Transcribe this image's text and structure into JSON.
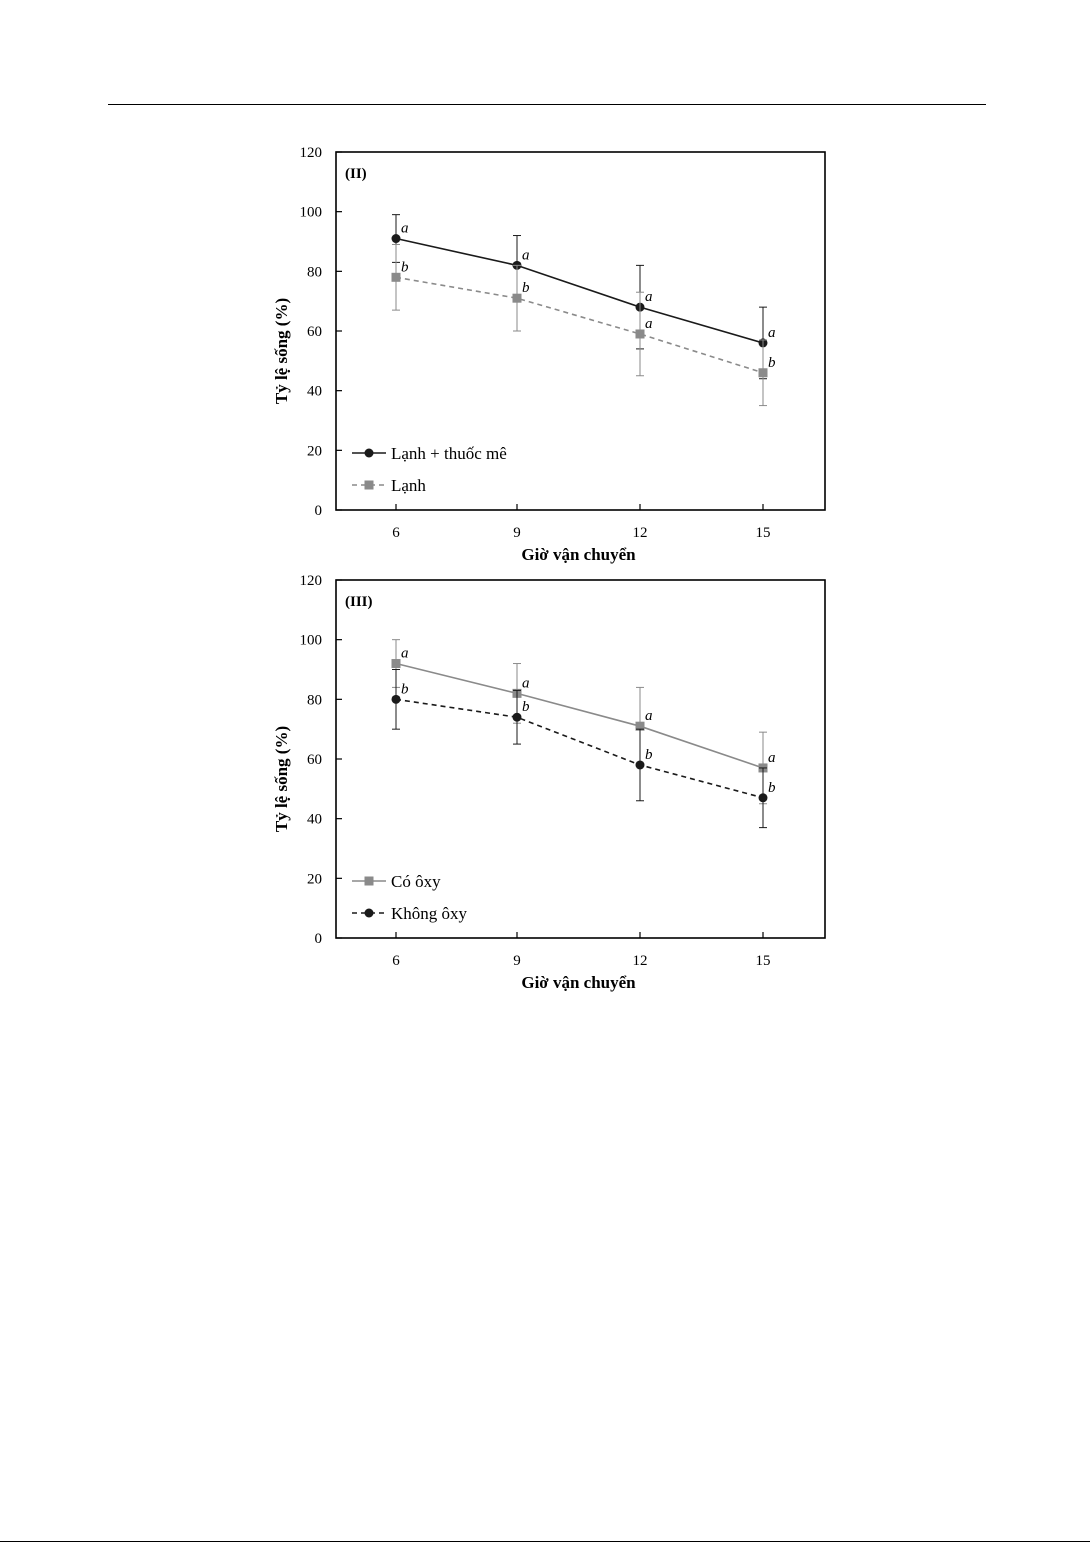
{
  "chart_data": [
    {
      "type": "line",
      "panel_label": "(II)",
      "xlabel": "Giờ vận chuyển",
      "ylabel": "Tỷ lệ sống (%)",
      "x": [
        6,
        9,
        12,
        15
      ],
      "x_tick_labels": [
        "6",
        "9",
        "12",
        "15"
      ],
      "ylim": [
        0,
        120
      ],
      "y_ticks": [
        0,
        20,
        40,
        60,
        80,
        100,
        120
      ],
      "y_tick_labels": [
        "0",
        "20",
        "40",
        "60",
        "80",
        "100",
        "120"
      ],
      "legend_position": "bottom-left",
      "series": [
        {
          "name": "Lạnh + thuốc mê",
          "marker": "circle",
          "line_style": "solid",
          "color": "#1a1a1a",
          "values": [
            91,
            82,
            68,
            56
          ],
          "error": [
            8,
            10,
            14,
            12
          ],
          "labels": [
            "a",
            "a",
            "a",
            "a"
          ]
        },
        {
          "name": "Lạnh",
          "marker": "square",
          "line_style": "dashed",
          "color": "#8a8a8a",
          "values": [
            78,
            71,
            59,
            46
          ],
          "error": [
            11,
            11,
            14,
            11
          ],
          "labels": [
            "b",
            "b",
            "a",
            "b"
          ]
        }
      ]
    },
    {
      "type": "line",
      "panel_label": "(III)",
      "xlabel": "Giờ vận chuyển",
      "ylabel": "Tỷ lệ sống (%)",
      "x": [
        6,
        9,
        12,
        15
      ],
      "x_tick_labels": [
        "6",
        "9",
        "12",
        "15"
      ],
      "ylim": [
        0,
        120
      ],
      "y_ticks": [
        0,
        20,
        40,
        60,
        80,
        100,
        120
      ],
      "y_tick_labels": [
        "0",
        "20",
        "40",
        "60",
        "80",
        "100",
        "120"
      ],
      "legend_position": "bottom-left",
      "series": [
        {
          "name": "Có ôxy",
          "marker": "square",
          "line_style": "solid",
          "color": "#8a8a8a",
          "values": [
            92,
            82,
            71,
            57
          ],
          "error": [
            8,
            10,
            13,
            12
          ],
          "labels": [
            "a",
            "a",
            "a",
            "a"
          ]
        },
        {
          "name": "Không ôxy",
          "marker": "circle",
          "line_style": "dashed",
          "color": "#1a1a1a",
          "values": [
            80,
            74,
            58,
            47
          ],
          "error": [
            10,
            9,
            12,
            10
          ],
          "labels": [
            "b",
            "b",
            "b",
            "b"
          ]
        }
      ]
    }
  ]
}
